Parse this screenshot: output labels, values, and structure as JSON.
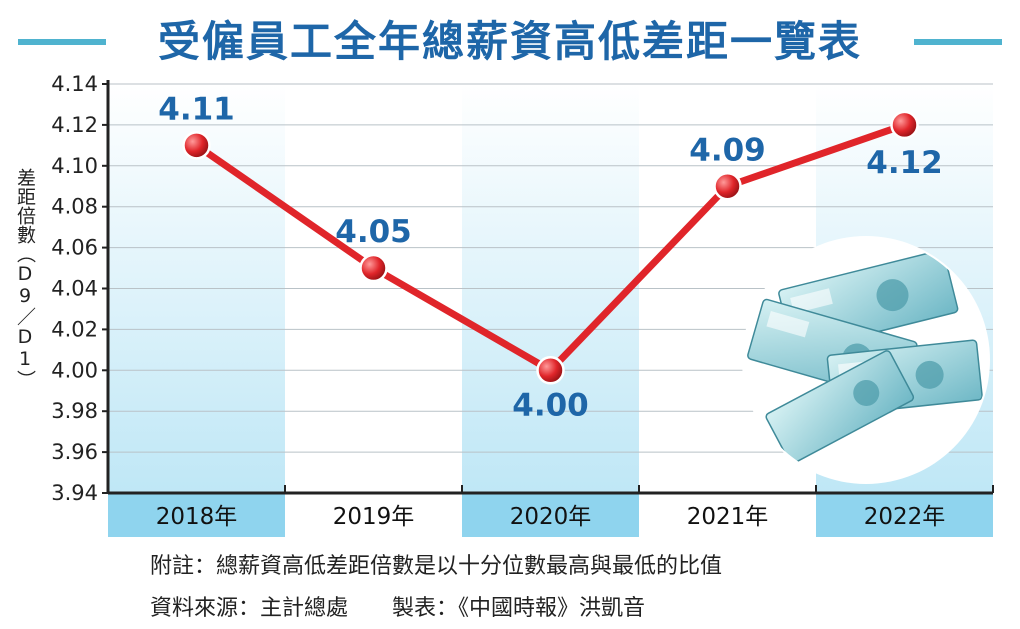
{
  "title": "受僱員工全年總薪資高低差距一覽表",
  "notes": {
    "note": "附註：總薪資高低差距倍數是以十分位數最高與最低的比值",
    "source": "資料來源：主計總處",
    "credit": "製表：《中國時報》洪凱音"
  },
  "colors": {
    "title": "#1e66a8",
    "title_rule": "#4fb3cf",
    "line": "#e0252a",
    "value_label": "#1e66a8",
    "band": "#c9ecf8",
    "category_band": "#8fd4ee"
  },
  "decoration": {
    "image": "banknote-stack-photo"
  },
  "chart_data": {
    "type": "line",
    "title": "受僱員工全年總薪資高低差距一覽表",
    "xlabel": "",
    "ylabel": "差距倍數（D9／D1）",
    "categories": [
      "2018年",
      "2019年",
      "2020年",
      "2021年",
      "2022年"
    ],
    "series": [
      {
        "values": [
          4.11,
          4.05,
          4.0,
          4.09,
          4.12
        ]
      }
    ],
    "data_labels": [
      "4.11",
      "4.05",
      "4.00",
      "4.09",
      "4.12"
    ],
    "ylim": [
      3.94,
      4.14
    ],
    "yticks": [
      "3.94",
      "3.96",
      "3.98",
      "4.00",
      "4.02",
      "4.04",
      "4.06",
      "4.08",
      "4.10",
      "4.12",
      "4.14"
    ],
    "grid": true,
    "legend": "none"
  }
}
